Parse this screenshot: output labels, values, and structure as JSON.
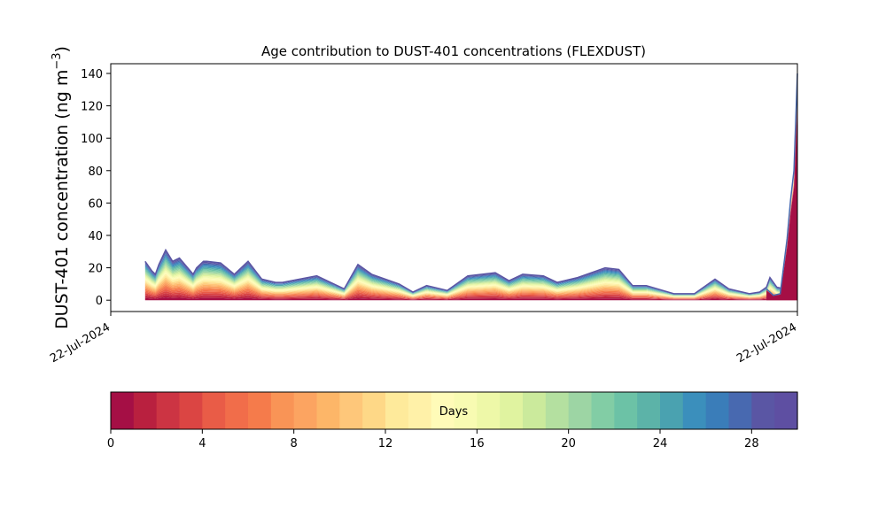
{
  "chart_data": {
    "type": "area",
    "title": "Age contribution to DUST-401 concentrations (FLEXDUST)",
    "ylabel_main": "DUST-401 concentration (ng m",
    "ylabel_sup": "−3",
    "ylabel_close": ")",
    "xlabel": "",
    "x_tick_labels": [
      "22-Jul-2024",
      "22-Jul-2024"
    ],
    "ylim": [
      -7,
      146
    ],
    "y_ticks": [
      0,
      20,
      40,
      60,
      80,
      100,
      120,
      140
    ],
    "grid": false,
    "x": [
      0.05,
      0.06,
      0.065,
      0.07,
      0.08,
      0.09,
      0.095,
      0.1,
      0.12,
      0.125,
      0.135,
      0.14,
      0.16,
      0.18,
      0.2,
      0.22,
      0.24,
      0.25,
      0.3,
      0.34,
      0.36,
      0.38,
      0.42,
      0.44,
      0.46,
      0.49,
      0.52,
      0.56,
      0.58,
      0.6,
      0.63,
      0.65,
      0.68,
      0.72,
      0.74,
      0.76,
      0.78,
      0.82,
      0.85,
      0.88,
      0.9,
      0.93,
      0.945,
      0.955,
      0.96,
      0.97,
      0.98,
      0.99,
      1.0
    ],
    "totals": [
      24,
      18,
      16,
      22,
      31,
      24,
      25,
      26,
      16,
      20,
      24,
      24,
      23,
      16,
      24,
      13,
      11,
      11,
      15,
      7,
      22,
      16,
      10,
      5,
      9,
      6,
      15,
      17,
      12,
      16,
      15,
      11,
      14,
      20,
      19,
      9,
      9,
      4,
      4,
      13,
      7,
      4,
      5,
      8,
      14,
      8,
      7,
      8,
      7
    ],
    "spike_x": [
      0.955,
      0.965,
      0.975,
      0.985,
      0.99,
      0.995,
      1.0
    ],
    "spike_totals": [
      7,
      3,
      4,
      38,
      62,
      80,
      140
    ],
    "colorbar": {
      "label": "Days",
      "min": 0,
      "max": 30,
      "ticks": [
        0,
        4,
        8,
        12,
        16,
        20,
        24,
        28
      ],
      "colors": [
        "#a50f45",
        "#b9203f",
        "#cc3443",
        "#db4543",
        "#e95c47",
        "#f16d4a",
        "#f57b4b",
        "#f99456",
        "#fca461",
        "#fdb668",
        "#fec77a",
        "#fed887",
        "#feea9b",
        "#fff1a8",
        "#fffbb8",
        "#f8fbb2",
        "#eef8a8",
        "#e0f3a0",
        "#cbea9c",
        "#b4e0a0",
        "#9dd5a4",
        "#82cda5",
        "#6cc2a6",
        "#5cb3a8",
        "#4aa2b0",
        "#3b8fbc",
        "#3a7db9",
        "#4869b0",
        "#5a56a4",
        "#5e4fa2"
      ]
    }
  }
}
